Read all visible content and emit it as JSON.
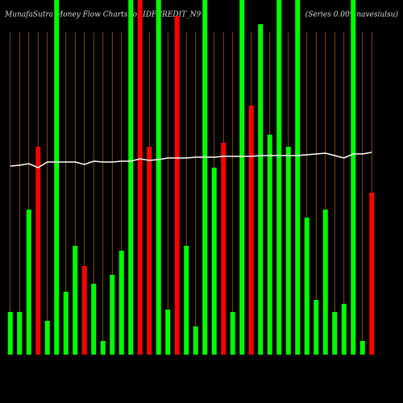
{
  "chart_data": {
    "type": "bar",
    "title": "MunafaSutra  Money Flow  Charts for IDFCREDIT_N9",
    "subtitle": "(Series 0.00%navesiulsu)",
    "categories": [
      null,
      null,
      null,
      null,
      null,
      null,
      null,
      null,
      null,
      null,
      null,
      null,
      null,
      null,
      null,
      null,
      null,
      null,
      null,
      null,
      null,
      null,
      null,
      null,
      null,
      null,
      null,
      null,
      null,
      null,
      null,
      null,
      null,
      null,
      null,
      null,
      null,
      null,
      null,
      null
    ],
    "ylim": [
      0,
      440
    ],
    "grid": true,
    "grid_color": "#b86a00",
    "background": "#000000",
    "series": [
      {
        "type": "bar",
        "colors": [
          "#00ff00",
          "#00ff00",
          "#00ff00",
          "#ff0000",
          "#00ff00",
          "#00ff00",
          "#00ff00",
          "#00ff00",
          "#ff0000",
          "#00ff00",
          "#00ff00",
          "#00ff00",
          "#00ff00",
          "#00ff00",
          "#ff0000",
          "#ff0000",
          "#00ff00",
          "#00ff00",
          "#ff0000",
          "#00ff00",
          "#00ff00",
          "#00ff00",
          "#00ff00",
          "#ff0000",
          "#00ff00",
          "#00ff00",
          "#ff0000",
          "#00ff00",
          "#00ff00",
          "#00ff00",
          "#00ff00",
          "#00ff00",
          "#00ff00",
          "#00ff00",
          "#00ff00",
          "#00ff00",
          "#00ff00",
          "#00ff00",
          "#00ff00",
          "#ff0000"
        ],
        "values": [
          53,
          53,
          180,
          258,
          42,
          440,
          78,
          135,
          110,
          88,
          17,
          99,
          129,
          440,
          440,
          258,
          440,
          56,
          420,
          135,
          35,
          440,
          232,
          263,
          53,
          440,
          309,
          410,
          273,
          440,
          258,
          440,
          170,
          68,
          180,
          53,
          63,
          440,
          17,
          201
        ]
      },
      {
        "type": "line",
        "color": "#ffffff",
        "values": [
          234,
          235,
          237,
          232,
          239,
          239,
          239,
          239,
          236,
          240,
          239,
          239,
          240,
          240,
          243,
          241,
          242,
          244,
          244,
          244,
          245,
          245,
          245,
          246,
          246,
          246,
          246,
          247,
          247,
          247,
          247,
          247,
          248,
          249,
          250,
          247,
          244,
          249,
          249,
          251
        ]
      }
    ]
  }
}
